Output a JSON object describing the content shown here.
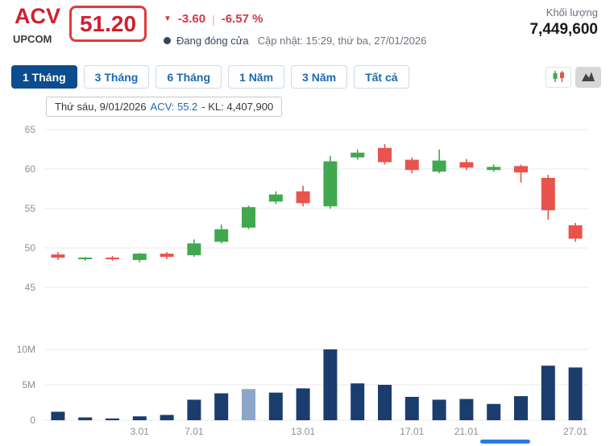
{
  "header": {
    "symbol": "ACV",
    "exchange": "UPCOM",
    "price": "51.20",
    "down_arrow": "▼",
    "change": "-3.60",
    "separator": "|",
    "change_percent": "-6.57 %",
    "market_status": "Đang đóng cửa",
    "updated": "Cập nhật: 15:29, thứ ba, 27/01/2026",
    "volume_label": "Khối lượng",
    "volume_value": "7,449,600"
  },
  "toolbar": {
    "ranges": [
      "1 Tháng",
      "3 Tháng",
      "6 Tháng",
      "1 Năm",
      "3 Năm",
      "Tất cả"
    ],
    "active_range": "1 Tháng",
    "chart_type_buttons": [
      "candlestick-chart",
      "area-chart"
    ],
    "active_chart_type": "area-chart"
  },
  "tooltip": {
    "date": "Thứ sáu, 9/01/2026",
    "symbol_value": "ACV: 55.2",
    "volume_text": "- KL: 4,407,900"
  },
  "colors": {
    "up": "#41a84f",
    "down": "#e8534e",
    "volume": "#1b3d6d",
    "volume_highlight": "#8ba6c9",
    "accent_red": "#cf2030",
    "accent_blue": "#1a6ab4",
    "tab_active_bg": "#0b4d8e"
  },
  "chart_data": [
    {
      "type": "candlestick",
      "title": "",
      "ylabel": "",
      "ylim": [
        44.5,
        66.3
      ],
      "y_ticks": [
        45,
        50,
        55,
        60,
        65
      ],
      "grid": true,
      "hovered": {
        "index": 7,
        "date": "Thứ sáu, 9/01/2026",
        "close": 55.2,
        "volume": 4407900
      },
      "candles": [
        {
          "o": 49.2,
          "h": 49.5,
          "l": 48.5,
          "c": 48.8
        },
        {
          "o": 48.6,
          "h": 48.9,
          "l": 48.4,
          "c": 48.8
        },
        {
          "o": 48.8,
          "h": 49.0,
          "l": 48.4,
          "c": 48.6
        },
        {
          "o": 48.5,
          "h": 49.4,
          "l": 48.2,
          "c": 49.3
        },
        {
          "o": 49.3,
          "h": 49.5,
          "l": 48.6,
          "c": 48.9
        },
        {
          "o": 49.1,
          "h": 51.1,
          "l": 48.9,
          "c": 50.6
        },
        {
          "o": 50.8,
          "h": 53.0,
          "l": 50.6,
          "c": 52.4
        },
        {
          "o": 52.6,
          "h": 55.4,
          "l": 52.4,
          "c": 55.2
        },
        {
          "o": 55.9,
          "h": 57.2,
          "l": 55.6,
          "c": 56.8
        },
        {
          "o": 57.2,
          "h": 57.9,
          "l": 55.3,
          "c": 55.7
        },
        {
          "o": 55.3,
          "h": 61.7,
          "l": 55.0,
          "c": 61.0
        },
        {
          "o": 61.5,
          "h": 62.5,
          "l": 61.2,
          "c": 62.1
        },
        {
          "o": 62.7,
          "h": 63.2,
          "l": 60.6,
          "c": 60.9
        },
        {
          "o": 61.2,
          "h": 61.5,
          "l": 59.5,
          "c": 59.9
        },
        {
          "o": 59.7,
          "h": 62.5,
          "l": 59.5,
          "c": 61.1
        },
        {
          "o": 60.9,
          "h": 61.3,
          "l": 59.9,
          "c": 60.2
        },
        {
          "o": 59.9,
          "h": 60.6,
          "l": 59.7,
          "c": 60.3
        },
        {
          "o": 60.4,
          "h": 60.6,
          "l": 58.3,
          "c": 59.6
        },
        {
          "o": 58.9,
          "h": 59.3,
          "l": 53.6,
          "c": 54.8
        },
        {
          "o": 52.9,
          "h": 53.2,
          "l": 50.8,
          "c": 51.2
        }
      ]
    },
    {
      "type": "bar",
      "title": "",
      "ylabel": "",
      "unit": "millions",
      "ylim": [
        0,
        11.5
      ],
      "grid": true,
      "y_ticks": [
        {
          "v": 0,
          "label": "0"
        },
        {
          "v": 5,
          "label": "5M"
        },
        {
          "v": 10,
          "label": "10M"
        }
      ],
      "values": [
        1.2,
        0.4,
        0.25,
        0.55,
        0.75,
        2.9,
        3.8,
        4.4,
        3.9,
        4.5,
        10.0,
        5.2,
        5.0,
        3.3,
        2.9,
        3.0,
        2.3,
        3.4,
        7.7,
        7.45
      ],
      "highlight_index": 7,
      "x_ticks": [
        {
          "label": "3.01",
          "index": 3
        },
        {
          "label": "7.01",
          "index": 5
        },
        {
          "label": "13.01",
          "index": 9
        },
        {
          "label": "17.01",
          "index": 13
        },
        {
          "label": "21.01",
          "index": 15
        },
        {
          "label": "27.01",
          "index": 19
        }
      ]
    }
  ]
}
